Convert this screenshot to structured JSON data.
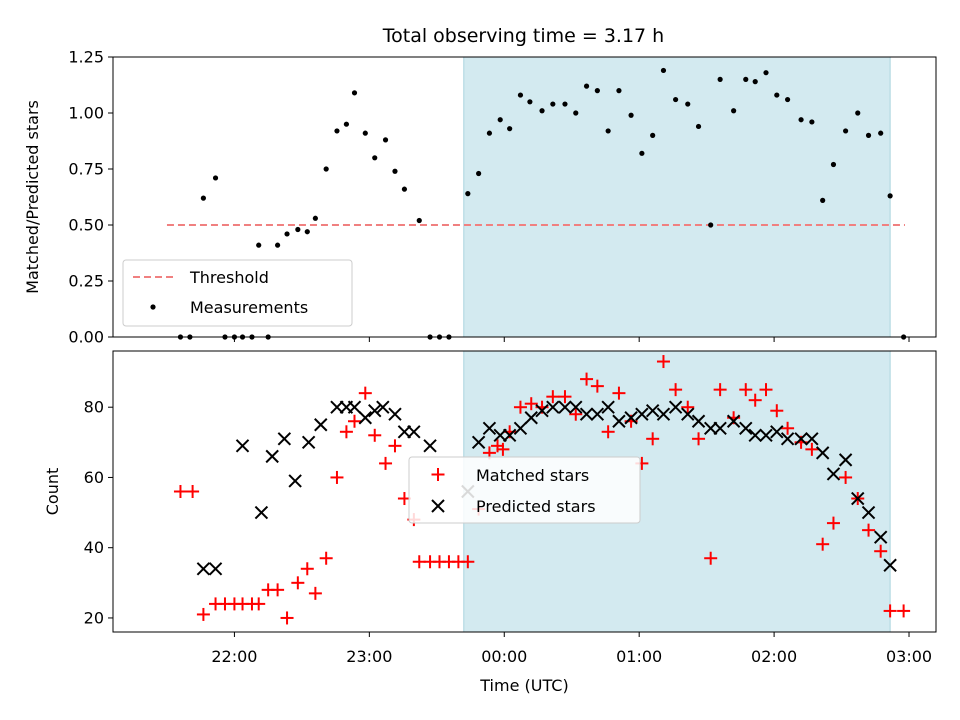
{
  "chart_data": [
    {
      "type": "scatter",
      "title": "Total observing time = 3.17 h",
      "xlabel": "",
      "ylabel": "Matched/Predicted stars",
      "ylim": [
        0,
        1.25
      ],
      "yticks": [
        "0.00",
        "0.25",
        "0.50",
        "0.75",
        "1.00",
        "1.25"
      ],
      "xlim_hours": [
        21.1,
        27.2
      ],
      "xticks_hours": [
        22,
        23,
        24,
        25,
        26,
        27
      ],
      "shaded_region_hours": [
        23.7,
        26.86
      ],
      "shaded_color": "#d3eaf0",
      "legend_position": "lower-left",
      "threshold": {
        "name": "Threshold",
        "value": 0.5,
        "x_range_hours": [
          21.5,
          26.97
        ],
        "color": "#f08080"
      },
      "series": [
        {
          "name": "Measurements",
          "color": "#000000",
          "points": [
            [
              21.6,
              0.0
            ],
            [
              21.67,
              0.0
            ],
            [
              21.77,
              0.62
            ],
            [
              21.86,
              0.71
            ],
            [
              21.93,
              0.0
            ],
            [
              22.0,
              0.0
            ],
            [
              22.06,
              0.0
            ],
            [
              22.13,
              0.0
            ],
            [
              22.18,
              0.41
            ],
            [
              22.25,
              0.0
            ],
            [
              22.32,
              0.41
            ],
            [
              22.39,
              0.46
            ],
            [
              22.47,
              0.48
            ],
            [
              22.54,
              0.47
            ],
            [
              22.6,
              0.53
            ],
            [
              22.68,
              0.75
            ],
            [
              22.76,
              0.92
            ],
            [
              22.83,
              0.95
            ],
            [
              22.89,
              1.09
            ],
            [
              22.97,
              0.91
            ],
            [
              23.04,
              0.8
            ],
            [
              23.12,
              0.88
            ],
            [
              23.19,
              0.74
            ],
            [
              23.26,
              0.66
            ],
            [
              23.37,
              0.52
            ],
            [
              23.45,
              0.0
            ],
            [
              23.52,
              0.0
            ],
            [
              23.59,
              0.0
            ],
            [
              23.73,
              0.64
            ],
            [
              23.81,
              0.73
            ],
            [
              23.89,
              0.91
            ],
            [
              23.97,
              0.97
            ],
            [
              24.04,
              0.93
            ],
            [
              24.12,
              1.08
            ],
            [
              24.19,
              1.05
            ],
            [
              24.28,
              1.01
            ],
            [
              24.36,
              1.04
            ],
            [
              24.45,
              1.04
            ],
            [
              24.53,
              1.0
            ],
            [
              24.61,
              1.12
            ],
            [
              24.69,
              1.1
            ],
            [
              24.77,
              0.92
            ],
            [
              24.85,
              1.1
            ],
            [
              24.94,
              0.99
            ],
            [
              25.02,
              0.82
            ],
            [
              25.1,
              0.9
            ],
            [
              25.18,
              1.19
            ],
            [
              25.27,
              1.06
            ],
            [
              25.36,
              1.04
            ],
            [
              25.44,
              0.94
            ],
            [
              25.53,
              0.5
            ],
            [
              25.6,
              1.15
            ],
            [
              25.7,
              1.01
            ],
            [
              25.79,
              1.15
            ],
            [
              25.86,
              1.14
            ],
            [
              25.94,
              1.18
            ],
            [
              26.02,
              1.08
            ],
            [
              26.1,
              1.06
            ],
            [
              26.2,
              0.97
            ],
            [
              26.28,
              0.96
            ],
            [
              26.36,
              0.61
            ],
            [
              26.44,
              0.77
            ],
            [
              26.53,
              0.92
            ],
            [
              26.62,
              1.0
            ],
            [
              26.7,
              0.9
            ],
            [
              26.79,
              0.91
            ],
            [
              26.86,
              0.63
            ],
            [
              26.96,
              0.0
            ]
          ]
        }
      ]
    },
    {
      "type": "scatter",
      "title": "",
      "xlabel": "Time (UTC)",
      "ylabel": "Count",
      "ylim": [
        16,
        96
      ],
      "yticks": [
        "20",
        "40",
        "60",
        "80"
      ],
      "xlim_hours": [
        21.1,
        27.2
      ],
      "xticks_hours": [
        22,
        23,
        24,
        25,
        26,
        27
      ],
      "xtick_labels": [
        "22:00",
        "23:00",
        "00:00",
        "01:00",
        "02:00",
        "03:00"
      ],
      "shaded_region_hours": [
        23.7,
        26.86
      ],
      "shaded_color": "#d3eaf0",
      "legend_position": "center",
      "series": [
        {
          "name": "Matched stars",
          "color": "#ff0000",
          "marker": "plus",
          "points": [
            [
              21.6,
              56
            ],
            [
              21.69,
              56
            ],
            [
              21.77,
              21
            ],
            [
              21.86,
              24
            ],
            [
              21.93,
              24
            ],
            [
              22.0,
              24
            ],
            [
              22.06,
              24
            ],
            [
              22.13,
              24
            ],
            [
              22.18,
              24
            ],
            [
              22.25,
              28
            ],
            [
              22.32,
              28
            ],
            [
              22.39,
              20
            ],
            [
              22.47,
              30
            ],
            [
              22.54,
              34
            ],
            [
              22.6,
              27
            ],
            [
              22.68,
              37
            ],
            [
              22.76,
              60
            ],
            [
              22.83,
              73
            ],
            [
              22.89,
              76
            ],
            [
              22.97,
              84
            ],
            [
              23.04,
              72
            ],
            [
              23.12,
              64
            ],
            [
              23.19,
              69
            ],
            [
              23.26,
              54
            ],
            [
              23.33,
              48
            ],
            [
              23.37,
              36
            ],
            [
              23.45,
              36
            ],
            [
              23.52,
              36
            ],
            [
              23.59,
              36
            ],
            [
              23.66,
              36
            ],
            [
              23.73,
              36
            ],
            [
              23.81,
              51
            ],
            [
              23.89,
              67
            ],
            [
              23.95,
              69
            ],
            [
              23.99,
              68
            ],
            [
              24.04,
              73
            ],
            [
              24.12,
              80
            ],
            [
              24.2,
              81
            ],
            [
              24.28,
              80
            ],
            [
              24.36,
              83
            ],
            [
              24.45,
              83
            ],
            [
              24.53,
              78
            ],
            [
              24.61,
              88
            ],
            [
              24.69,
              86
            ],
            [
              24.77,
              73
            ],
            [
              24.85,
              84
            ],
            [
              24.94,
              76
            ],
            [
              25.02,
              64
            ],
            [
              25.1,
              71
            ],
            [
              25.18,
              93
            ],
            [
              25.27,
              85
            ],
            [
              25.36,
              80
            ],
            [
              25.44,
              71
            ],
            [
              25.53,
              37
            ],
            [
              25.6,
              85
            ],
            [
              25.7,
              77
            ],
            [
              25.79,
              85
            ],
            [
              25.86,
              82
            ],
            [
              25.94,
              85
            ],
            [
              26.02,
              79
            ],
            [
              26.1,
              74
            ],
            [
              26.2,
              70
            ],
            [
              26.28,
              68
            ],
            [
              26.36,
              41
            ],
            [
              26.44,
              47
            ],
            [
              26.53,
              60
            ],
            [
              26.62,
              54
            ],
            [
              26.7,
              45
            ],
            [
              26.79,
              39
            ],
            [
              26.86,
              22
            ],
            [
              26.96,
              22
            ]
          ]
        },
        {
          "name": "Predicted stars",
          "color": "#000000",
          "marker": "x",
          "points": [
            [
              21.77,
              34
            ],
            [
              21.86,
              34
            ],
            [
              22.06,
              69
            ],
            [
              22.2,
              50
            ],
            [
              22.28,
              66
            ],
            [
              22.37,
              71
            ],
            [
              22.45,
              59
            ],
            [
              22.55,
              70
            ],
            [
              22.64,
              75
            ],
            [
              22.76,
              80
            ],
            [
              22.83,
              80
            ],
            [
              22.89,
              80
            ],
            [
              22.97,
              77
            ],
            [
              23.04,
              79
            ],
            [
              23.1,
              80
            ],
            [
              23.19,
              78
            ],
            [
              23.26,
              73
            ],
            [
              23.33,
              73
            ],
            [
              23.45,
              69
            ],
            [
              23.73,
              56
            ],
            [
              23.81,
              70
            ],
            [
              23.89,
              74
            ],
            [
              23.97,
              72
            ],
            [
              24.04,
              72
            ],
            [
              24.12,
              74
            ],
            [
              24.2,
              77
            ],
            [
              24.28,
              79
            ],
            [
              24.36,
              80
            ],
            [
              24.45,
              80
            ],
            [
              24.53,
              80
            ],
            [
              24.61,
              78
            ],
            [
              24.69,
              78
            ],
            [
              24.77,
              80
            ],
            [
              24.85,
              76
            ],
            [
              24.94,
              77
            ],
            [
              25.02,
              78
            ],
            [
              25.1,
              79
            ],
            [
              25.18,
              78
            ],
            [
              25.27,
              80
            ],
            [
              25.36,
              78
            ],
            [
              25.44,
              76
            ],
            [
              25.53,
              74
            ],
            [
              25.6,
              74
            ],
            [
              25.7,
              76
            ],
            [
              25.79,
              74
            ],
            [
              25.86,
              72
            ],
            [
              25.94,
              72
            ],
            [
              26.02,
              73
            ],
            [
              26.1,
              71
            ],
            [
              26.2,
              71
            ],
            [
              26.28,
              71
            ],
            [
              26.36,
              67
            ],
            [
              26.44,
              61
            ],
            [
              26.53,
              65
            ],
            [
              26.62,
              54
            ],
            [
              26.7,
              50
            ],
            [
              26.79,
              43
            ],
            [
              26.86,
              35
            ]
          ]
        }
      ]
    }
  ]
}
